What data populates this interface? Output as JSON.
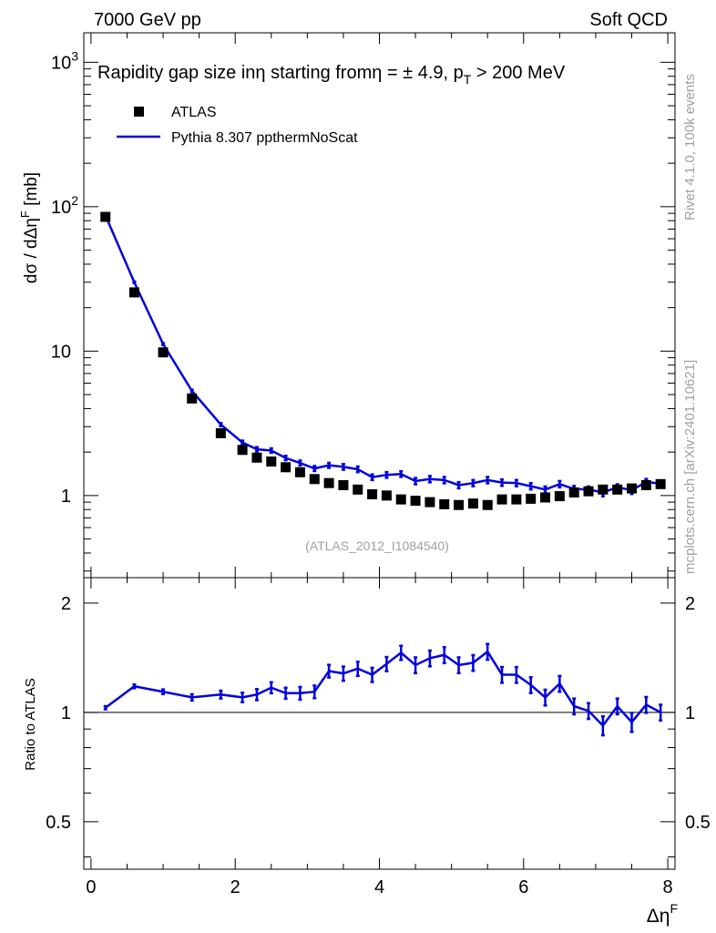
{
  "header": {
    "left": "7000 GeV pp",
    "right": "Soft QCD"
  },
  "side": {
    "rivet": "Rivet 4.1.0,  100k events",
    "mcplots": "mcplots.cern.ch [arXiv:2401.10621]"
  },
  "chart_data": {
    "type": "scatter",
    "title": "Rapidity gap size inη starting fromη = ± 4.9, p_T > 200 MeV",
    "title_parts": {
      "main": "Rapidity gap size inη starting fromη = ± 4.9, p",
      "sub": "T",
      "tail": " > 200 MeV"
    },
    "analysis_label": "(ATLAS_2012_I1084540)",
    "xlabel": "Δη",
    "xlabel_sup": "F",
    "ylabel": "dσ / dΔη",
    "ylabel_sup": "F",
    "ylabel_unit": " [mb]",
    "ratio_ylabel": "Ratio to ATLAS",
    "xlim": [
      -0.1,
      8.1
    ],
    "ylim": [
      0.27,
      1600
    ],
    "ratio_ylim": [
      0.37,
      2.35
    ],
    "x_ticks": [
      {
        "v": 0,
        "label": "0"
      },
      {
        "v": 2,
        "label": "2"
      },
      {
        "v": 4,
        "label": "4"
      },
      {
        "v": 6,
        "label": "6"
      },
      {
        "v": 8,
        "label": "8"
      }
    ],
    "y_ticks": [
      {
        "v": 1000,
        "base": "10",
        "exp": "3"
      },
      {
        "v": 100,
        "base": "10",
        "exp": "2"
      },
      {
        "v": 10,
        "base": "10",
        "exp": ""
      },
      {
        "v": 1,
        "base": "1",
        "exp": ""
      }
    ],
    "ratio_ticks": [
      {
        "v": 2,
        "label": "2"
      },
      {
        "v": 1,
        "label": "1"
      },
      {
        "v": 0.5,
        "label": "0.5"
      }
    ],
    "legend": [
      {
        "name": "ATLAS",
        "marker": "square",
        "color": "#000000"
      },
      {
        "name": "Pythia 8.307 ppthermNoScat",
        "marker": "line",
        "color": "#0000dd"
      }
    ],
    "x": [
      0.2,
      0.6,
      1.0,
      1.4,
      1.8,
      2.1,
      2.3,
      2.5,
      2.7,
      2.9,
      3.1,
      3.3,
      3.5,
      3.7,
      3.9,
      4.1,
      4.3,
      4.5,
      4.7,
      4.9,
      5.1,
      5.3,
      5.5,
      5.7,
      5.9,
      6.1,
      6.3,
      6.5,
      6.7,
      6.9,
      7.1,
      7.3,
      7.5,
      7.7,
      7.9
    ],
    "series": [
      {
        "name": "ATLAS",
        "values": [
          85,
          25.5,
          9.8,
          4.7,
          2.7,
          2.07,
          1.83,
          1.72,
          1.57,
          1.45,
          1.3,
          1.22,
          1.18,
          1.1,
          1.02,
          1.0,
          0.94,
          0.92,
          0.9,
          0.87,
          0.86,
          0.88,
          0.86,
          0.94,
          0.94,
          0.95,
          0.97,
          0.99,
          1.05,
          1.07,
          1.1,
          1.1,
          1.12,
          1.18,
          1.2
        ]
      },
      {
        "name": "Pythia 8.307 ppthermNoScat",
        "values": [
          87,
          30,
          11.2,
          5.3,
          3.1,
          2.33,
          2.09,
          2.05,
          1.82,
          1.68,
          1.54,
          1.62,
          1.58,
          1.52,
          1.34,
          1.39,
          1.41,
          1.26,
          1.3,
          1.28,
          1.18,
          1.22,
          1.28,
          1.23,
          1.22,
          1.16,
          1.1,
          1.2,
          1.11,
          1.1,
          1.05,
          1.14,
          1.09,
          1.24,
          1.21
        ],
        "errors": [
          0.01,
          0.012,
          0.015,
          0.02,
          0.025,
          0.03,
          0.035,
          0.035,
          0.035,
          0.04,
          0.04,
          0.04,
          0.045,
          0.045,
          0.045,
          0.045,
          0.045,
          0.05,
          0.05,
          0.05,
          0.05,
          0.05,
          0.05,
          0.05,
          0.05,
          0.05,
          0.05,
          0.05,
          0.05,
          0.05,
          0.06,
          0.05,
          0.06,
          0.05,
          0.05
        ],
        "ratio": [
          1.03,
          1.18,
          1.14,
          1.1,
          1.12,
          1.1,
          1.12,
          1.17,
          1.13,
          1.13,
          1.14,
          1.3,
          1.28,
          1.32,
          1.27,
          1.36,
          1.46,
          1.35,
          1.41,
          1.44,
          1.35,
          1.37,
          1.47,
          1.27,
          1.27,
          1.19,
          1.1,
          1.2,
          1.04,
          1.01,
          0.92,
          1.04,
          0.94,
          1.05,
          1.0
        ]
      }
    ]
  }
}
